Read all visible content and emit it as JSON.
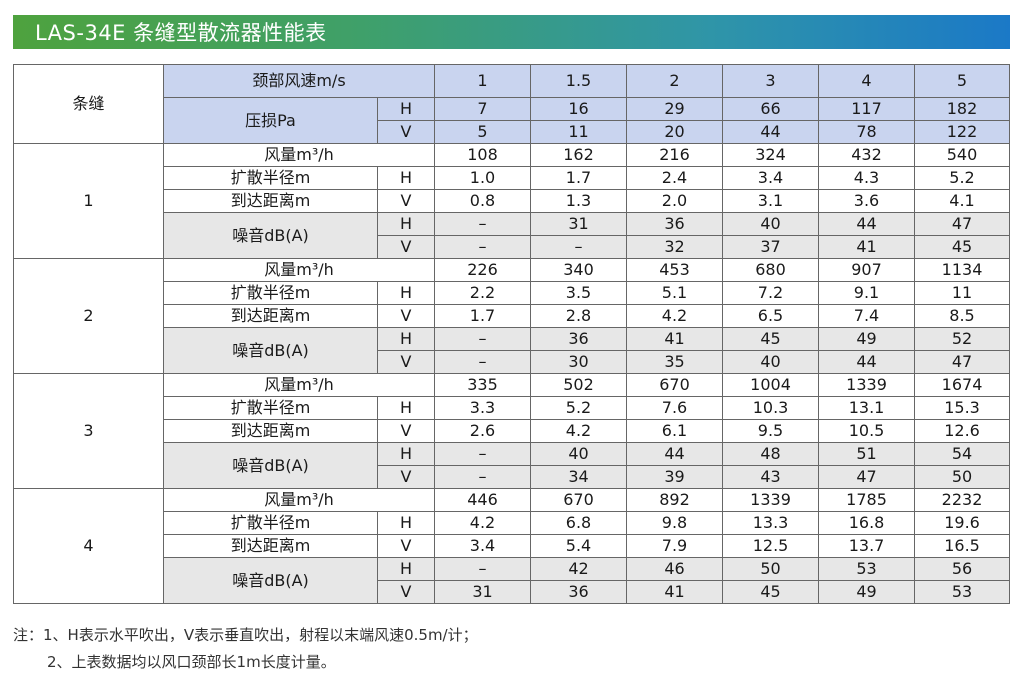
{
  "title": "LAS-34E 条缝型散流器性能表",
  "header": {
    "col_label": "条缝",
    "speed_label": "颈部风速m/s",
    "speeds": [
      "1",
      "1.5",
      "2",
      "3",
      "4",
      "5"
    ],
    "pressure_label": "压损Pa",
    "pressure": [
      {
        "dir": "H",
        "values": [
          "7",
          "16",
          "29",
          "66",
          "117",
          "182"
        ]
      },
      {
        "dir": "V",
        "values": [
          "5",
          "11",
          "20",
          "44",
          "78",
          "122"
        ]
      }
    ]
  },
  "labels": {
    "airflow": "风量m³/h",
    "radius": "扩散半径m",
    "reach": "到达距离m",
    "noise": "噪音dB(A)",
    "h": "H",
    "v": "V"
  },
  "groups": [
    {
      "slots": "1",
      "airflow": [
        "108",
        "162",
        "216",
        "324",
        "432",
        "540"
      ],
      "radius": [
        "1.0",
        "1.7",
        "2.4",
        "3.4",
        "4.3",
        "5.2"
      ],
      "reach": [
        "0.8",
        "1.3",
        "2.0",
        "3.1",
        "3.6",
        "4.1"
      ],
      "noise_h": [
        "–",
        "31",
        "36",
        "40",
        "44",
        "47"
      ],
      "noise_v": [
        "–",
        "–",
        "32",
        "37",
        "41",
        "45"
      ]
    },
    {
      "slots": "2",
      "airflow": [
        "226",
        "340",
        "453",
        "680",
        "907",
        "1134"
      ],
      "radius": [
        "2.2",
        "3.5",
        "5.1",
        "7.2",
        "9.1",
        "11"
      ],
      "reach": [
        "1.7",
        "2.8",
        "4.2",
        "6.5",
        "7.4",
        "8.5"
      ],
      "noise_h": [
        "–",
        "36",
        "41",
        "45",
        "49",
        "52"
      ],
      "noise_v": [
        "–",
        "30",
        "35",
        "40",
        "44",
        "47"
      ]
    },
    {
      "slots": "3",
      "airflow": [
        "335",
        "502",
        "670",
        "1004",
        "1339",
        "1674"
      ],
      "radius": [
        "3.3",
        "5.2",
        "7.6",
        "10.3",
        "13.1",
        "15.3"
      ],
      "reach": [
        "2.6",
        "4.2",
        "6.1",
        "9.5",
        "10.5",
        "12.6"
      ],
      "noise_h": [
        "–",
        "40",
        "44",
        "48",
        "51",
        "54"
      ],
      "noise_v": [
        "–",
        "34",
        "39",
        "43",
        "47",
        "50"
      ]
    },
    {
      "slots": "4",
      "airflow": [
        "446",
        "670",
        "892",
        "1339",
        "1785",
        "2232"
      ],
      "radius": [
        "4.2",
        "6.8",
        "9.8",
        "13.3",
        "16.8",
        "19.6"
      ],
      "reach": [
        "3.4",
        "5.4",
        "7.9",
        "12.5",
        "13.7",
        "16.5"
      ],
      "noise_h": [
        "–",
        "42",
        "46",
        "50",
        "53",
        "56"
      ],
      "noise_v": [
        "31",
        "36",
        "41",
        "45",
        "49",
        "53"
      ]
    }
  ],
  "notes": {
    "line1": "注：1、H表示水平吹出，V表示垂直吹出，射程以末端风速0.5m/计；",
    "line2": "2、上表数据均以风口颈部长1m长度计量。"
  }
}
